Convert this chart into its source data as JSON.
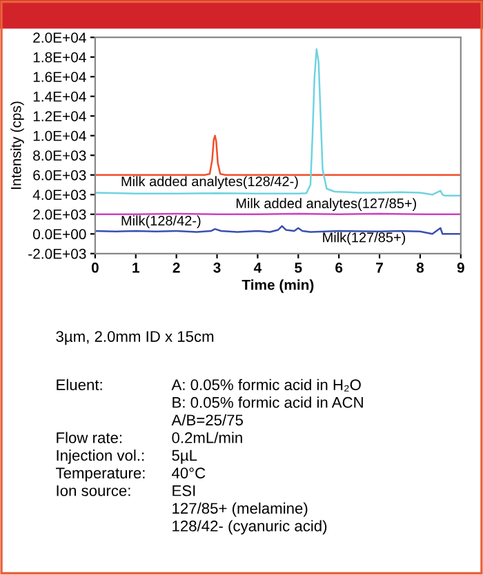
{
  "chart_data": {
    "type": "line",
    "xlabel": "Time (min)",
    "ylabel": "Intensity (cps)",
    "xlim": [
      0,
      9
    ],
    "xticks": [
      0,
      1,
      2,
      3,
      4,
      5,
      6,
      7,
      8,
      9
    ],
    "ylim": [
      -2000,
      20000
    ],
    "yticks": [
      {
        "value": -2000,
        "label": "-2.0E+03"
      },
      {
        "value": 0,
        "label": "0.0E+00"
      },
      {
        "value": 2000,
        "label": "2.0E+03"
      },
      {
        "value": 4000,
        "label": "4.0E+03"
      },
      {
        "value": 6000,
        "label": "6.0E+03"
      },
      {
        "value": 8000,
        "label": "8.0E+03"
      },
      {
        "value": 10000,
        "label": "1.0E+04"
      },
      {
        "value": 12000,
        "label": "1.2E+04"
      },
      {
        "value": 14000,
        "label": "1.4E+04"
      },
      {
        "value": 16000,
        "label": "1.6E+04"
      },
      {
        "value": 18000,
        "label": "1.8E+04"
      },
      {
        "value": 20000,
        "label": "2.0E+04"
      }
    ],
    "grid": false,
    "legend": false,
    "marker": "none",
    "line_style": "solid",
    "series": [
      {
        "name": "Milk added analytes(128/42-)",
        "color": "#f0502a",
        "x": [
          0,
          1,
          2,
          2.7,
          2.82,
          2.88,
          2.92,
          2.95,
          2.98,
          3.02,
          3.08,
          3.2,
          4,
          5,
          6,
          7,
          8,
          9
        ],
        "values": [
          6000,
          6000,
          6000,
          6000,
          6100,
          7500,
          9600,
          10000,
          9400,
          7200,
          6100,
          6000,
          6000,
          6000,
          6000,
          6000,
          6000,
          6000
        ]
      },
      {
        "name": "Milk added analytes(127/85+)",
        "color": "#6fd3e0",
        "x": [
          0,
          1,
          2,
          3,
          4,
          5,
          5.2,
          5.3,
          5.35,
          5.4,
          5.45,
          5.5,
          5.55,
          5.6,
          5.7,
          5.9,
          6.5,
          7,
          7.5,
          8,
          8.3,
          8.5,
          8.55,
          8.6,
          9
        ],
        "values": [
          4200,
          4100,
          4100,
          4150,
          4100,
          4100,
          4150,
          5000,
          10000,
          16000,
          18800,
          17500,
          12000,
          6500,
          4600,
          4300,
          4200,
          4200,
          4250,
          4200,
          4000,
          4400,
          4000,
          3900,
          3900
        ]
      },
      {
        "name": "Milk(128/42-)",
        "color": "#d040c0",
        "x": [
          0,
          1,
          2,
          3,
          4,
          5,
          6,
          7,
          8,
          9
        ],
        "values": [
          2000,
          2000,
          2050,
          2000,
          2000,
          2050,
          2000,
          2050,
          2000,
          2000
        ]
      },
      {
        "name": "Milk(127/85+)",
        "color": "#3a4fb0",
        "x": [
          0,
          0.5,
          1,
          1.5,
          2,
          2.5,
          2.85,
          2.95,
          3.1,
          3.5,
          4,
          4.3,
          4.5,
          4.6,
          4.7,
          4.9,
          5.0,
          5.1,
          5.3,
          6,
          7,
          7.5,
          8,
          8.3,
          8.5,
          8.55,
          9
        ],
        "values": [
          300,
          250,
          300,
          250,
          300,
          200,
          300,
          500,
          300,
          200,
          300,
          200,
          400,
          800,
          400,
          300,
          600,
          300,
          200,
          300,
          250,
          300,
          250,
          0,
          600,
          0,
          0
        ]
      }
    ],
    "annotations": [
      "3µm, 2.0mm ID x 15cm",
      "Eluent:\tA: 0.05% formic acid in H₂O",
      "\tB: 0.05% formic acid in ACN",
      "\tA/B=25/75",
      "Flow rate:\t0.2mL/min",
      "Injection vol.:\t5µL",
      "Temperature:\t40°C",
      "Ion source:\tESI",
      "\t127/85+ (melamine)",
      "\t128/42- (cyanuric acid)"
    ]
  }
}
